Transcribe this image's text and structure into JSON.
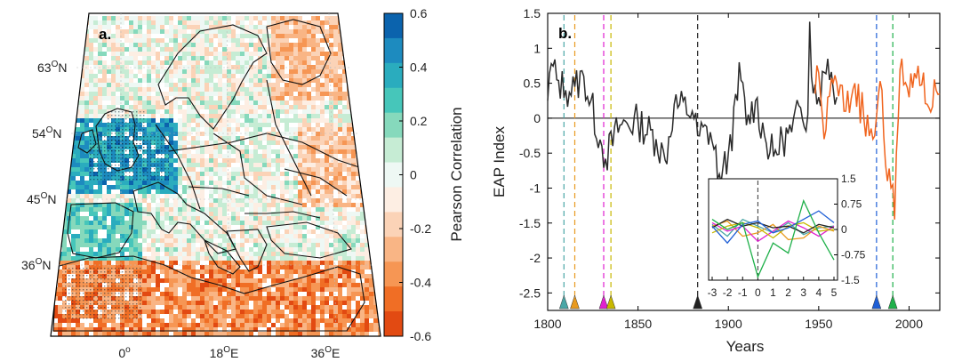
{
  "chart_data": [
    {
      "type": "heatmap",
      "panel_label": "a.",
      "lat_ticks": [
        {
          "deg": "63",
          "min": "O",
          "hem": "N"
        },
        {
          "deg": "54",
          "min": "O",
          "hem": "N"
        },
        {
          "deg": "45",
          "min": "O",
          "hem": "N"
        },
        {
          "deg": "36",
          "min": "O",
          "hem": "N"
        }
      ],
      "lon_ticks": [
        {
          "deg": "0",
          "min": "o",
          "hem": ""
        },
        {
          "deg": "18",
          "min": "O",
          "hem": "E"
        },
        {
          "deg": "36",
          "min": "O",
          "hem": "E"
        }
      ],
      "colorbar": {
        "label": "Pearson Correlation",
        "ticks": [
          "0.6",
          "0.4",
          "0.2",
          "0",
          "-0.2",
          "-0.4",
          "-0.6"
        ],
        "range": [
          -0.6,
          0.6
        ],
        "colors": [
          "#0b63ad",
          "#1d8bbf",
          "#2aacbe",
          "#46c6ba",
          "#86d9bc",
          "#c6ecd4",
          "#eef8f4",
          "#fdeee3",
          "#fbd3b7",
          "#f9b585",
          "#f69654",
          "#f06e25",
          "#e24a12"
        ]
      }
    },
    {
      "type": "line",
      "panel_label": "b.",
      "xlabel": "Years",
      "ylabel": "EAP Index",
      "xlim": [
        1800,
        2017
      ],
      "ylim": [
        -2.75,
        1.5
      ],
      "x_ticks": [
        "1800",
        "1850",
        "1900",
        "1950",
        "2000"
      ],
      "y_ticks": [
        "1.5",
        "1",
        "0.5",
        "0",
        "-0.5",
        "-1",
        "-1.5",
        "-2",
        "-2.5"
      ],
      "series": [
        {
          "color": "#2b2b2b",
          "x_start": 1800,
          "x_end": 1960,
          "key_points": [
            [
              1800,
              0.25
            ],
            [
              1802,
              0.78
            ],
            [
              1805,
              0.55
            ],
            [
              1810,
              0.4
            ],
            [
              1815,
              0.45
            ],
            [
              1820,
              0.6
            ],
            [
              1830,
              -0.4
            ],
            [
              1832,
              -0.58
            ],
            [
              1840,
              -0.1
            ],
            [
              1850,
              -0.05
            ],
            [
              1860,
              -0.3
            ],
            [
              1865,
              -0.6
            ],
            [
              1870,
              0.2
            ],
            [
              1880,
              0.1
            ],
            [
              1883,
              -0.25
            ],
            [
              1890,
              -0.2
            ],
            [
              1895,
              -0.8
            ],
            [
              1896,
              -0.92
            ],
            [
              1900,
              -0.5
            ],
            [
              1905,
              0.25
            ],
            [
              1906,
              0.8
            ],
            [
              1910,
              -0.1
            ],
            [
              1915,
              0.25
            ],
            [
              1920,
              -0.25
            ],
            [
              1925,
              -0.55
            ],
            [
              1930,
              -0.3
            ],
            [
              1935,
              -0.2
            ],
            [
              1940,
              0.15
            ],
            [
              1944,
              0.05
            ],
            [
              1945,
              1.38
            ],
            [
              1946,
              0.6
            ],
            [
              1950,
              0.3
            ],
            [
              1955,
              0.85
            ],
            [
              1960,
              0.3
            ]
          ]
        },
        {
          "color": "#f0641e",
          "x_start": 1948,
          "x_end": 2017,
          "key_points": [
            [
              1948,
              0.35
            ],
            [
              1950,
              0.65
            ],
            [
              1953,
              -0.3
            ],
            [
              1955,
              0.3
            ],
            [
              1960,
              0.5
            ],
            [
              1965,
              0.1
            ],
            [
              1970,
              0.5
            ],
            [
              1975,
              0.0
            ],
            [
              1980,
              -0.3
            ],
            [
              1985,
              0.4
            ],
            [
              1988,
              -0.9
            ],
            [
              1989,
              -0.72
            ],
            [
              1991,
              -0.95
            ],
            [
              1992,
              -1.45
            ],
            [
              1993,
              -0.5
            ],
            [
              1995,
              0.7
            ],
            [
              2000,
              0.3
            ],
            [
              2005,
              0.75
            ],
            [
              2010,
              0.2
            ],
            [
              2015,
              0.4
            ],
            [
              2017,
              0.35
            ]
          ]
        }
      ],
      "zero_line": 0,
      "markers": [
        {
          "year": 1809,
          "color": "#4aa6a6"
        },
        {
          "year": 1815,
          "color": "#e89a20"
        },
        {
          "year": 1831,
          "color": "#e020d0"
        },
        {
          "year": 1835,
          "color": "#c8b800"
        },
        {
          "year": 1883,
          "color": "#222222"
        },
        {
          "year": 1982,
          "color": "#1f5fd6"
        },
        {
          "year": 1991,
          "color": "#1fb04a"
        }
      ],
      "inset": {
        "type": "line",
        "x": [
          -3,
          -2,
          -1,
          0,
          1,
          2,
          3,
          4,
          5
        ],
        "x_ticks": [
          "-3",
          "-2",
          "-1",
          "0",
          "1",
          "2",
          "3",
          "4",
          "5"
        ],
        "y_ticks": [
          "1.5",
          "0.75",
          "0",
          "-0.75",
          "-1.5"
        ],
        "ylim": [
          -1.5,
          1.5
        ],
        "series": [
          {
            "color": "#4aa6a6",
            "values": [
              0.15,
              -0.2,
              0.3,
              0.1,
              -0.1,
              0.2,
              -0.15,
              0.05,
              0.1
            ]
          },
          {
            "color": "#e89a20",
            "values": [
              0.1,
              0.25,
              -0.2,
              -0.1,
              0.15,
              -0.3,
              -0.25,
              0.1,
              -0.05
            ]
          },
          {
            "color": "#e020d0",
            "values": [
              0.2,
              -0.05,
              0.1,
              -0.35,
              -0.05,
              0.25,
              0.05,
              -0.2,
              0.1
            ]
          },
          {
            "color": "#c8b800",
            "values": [
              -0.1,
              0.1,
              0.2,
              0.05,
              -0.25,
              0.1,
              0.2,
              -0.05,
              0.0
            ]
          },
          {
            "color": "#222222",
            "values": [
              0.05,
              0.3,
              0.1,
              0.2,
              0.05,
              0.1,
              -0.1,
              0.15,
              0.05
            ]
          },
          {
            "color": "#1f5fd6",
            "values": [
              0.1,
              -0.4,
              0.15,
              0.25,
              -0.1,
              0.05,
              0.3,
              0.55,
              0.2
            ]
          },
          {
            "color": "#1fb04a",
            "values": [
              0.3,
              0.0,
              0.2,
              -1.4,
              -0.4,
              -0.7,
              0.85,
              -0.1,
              -0.9
            ]
          }
        ]
      }
    }
  ]
}
